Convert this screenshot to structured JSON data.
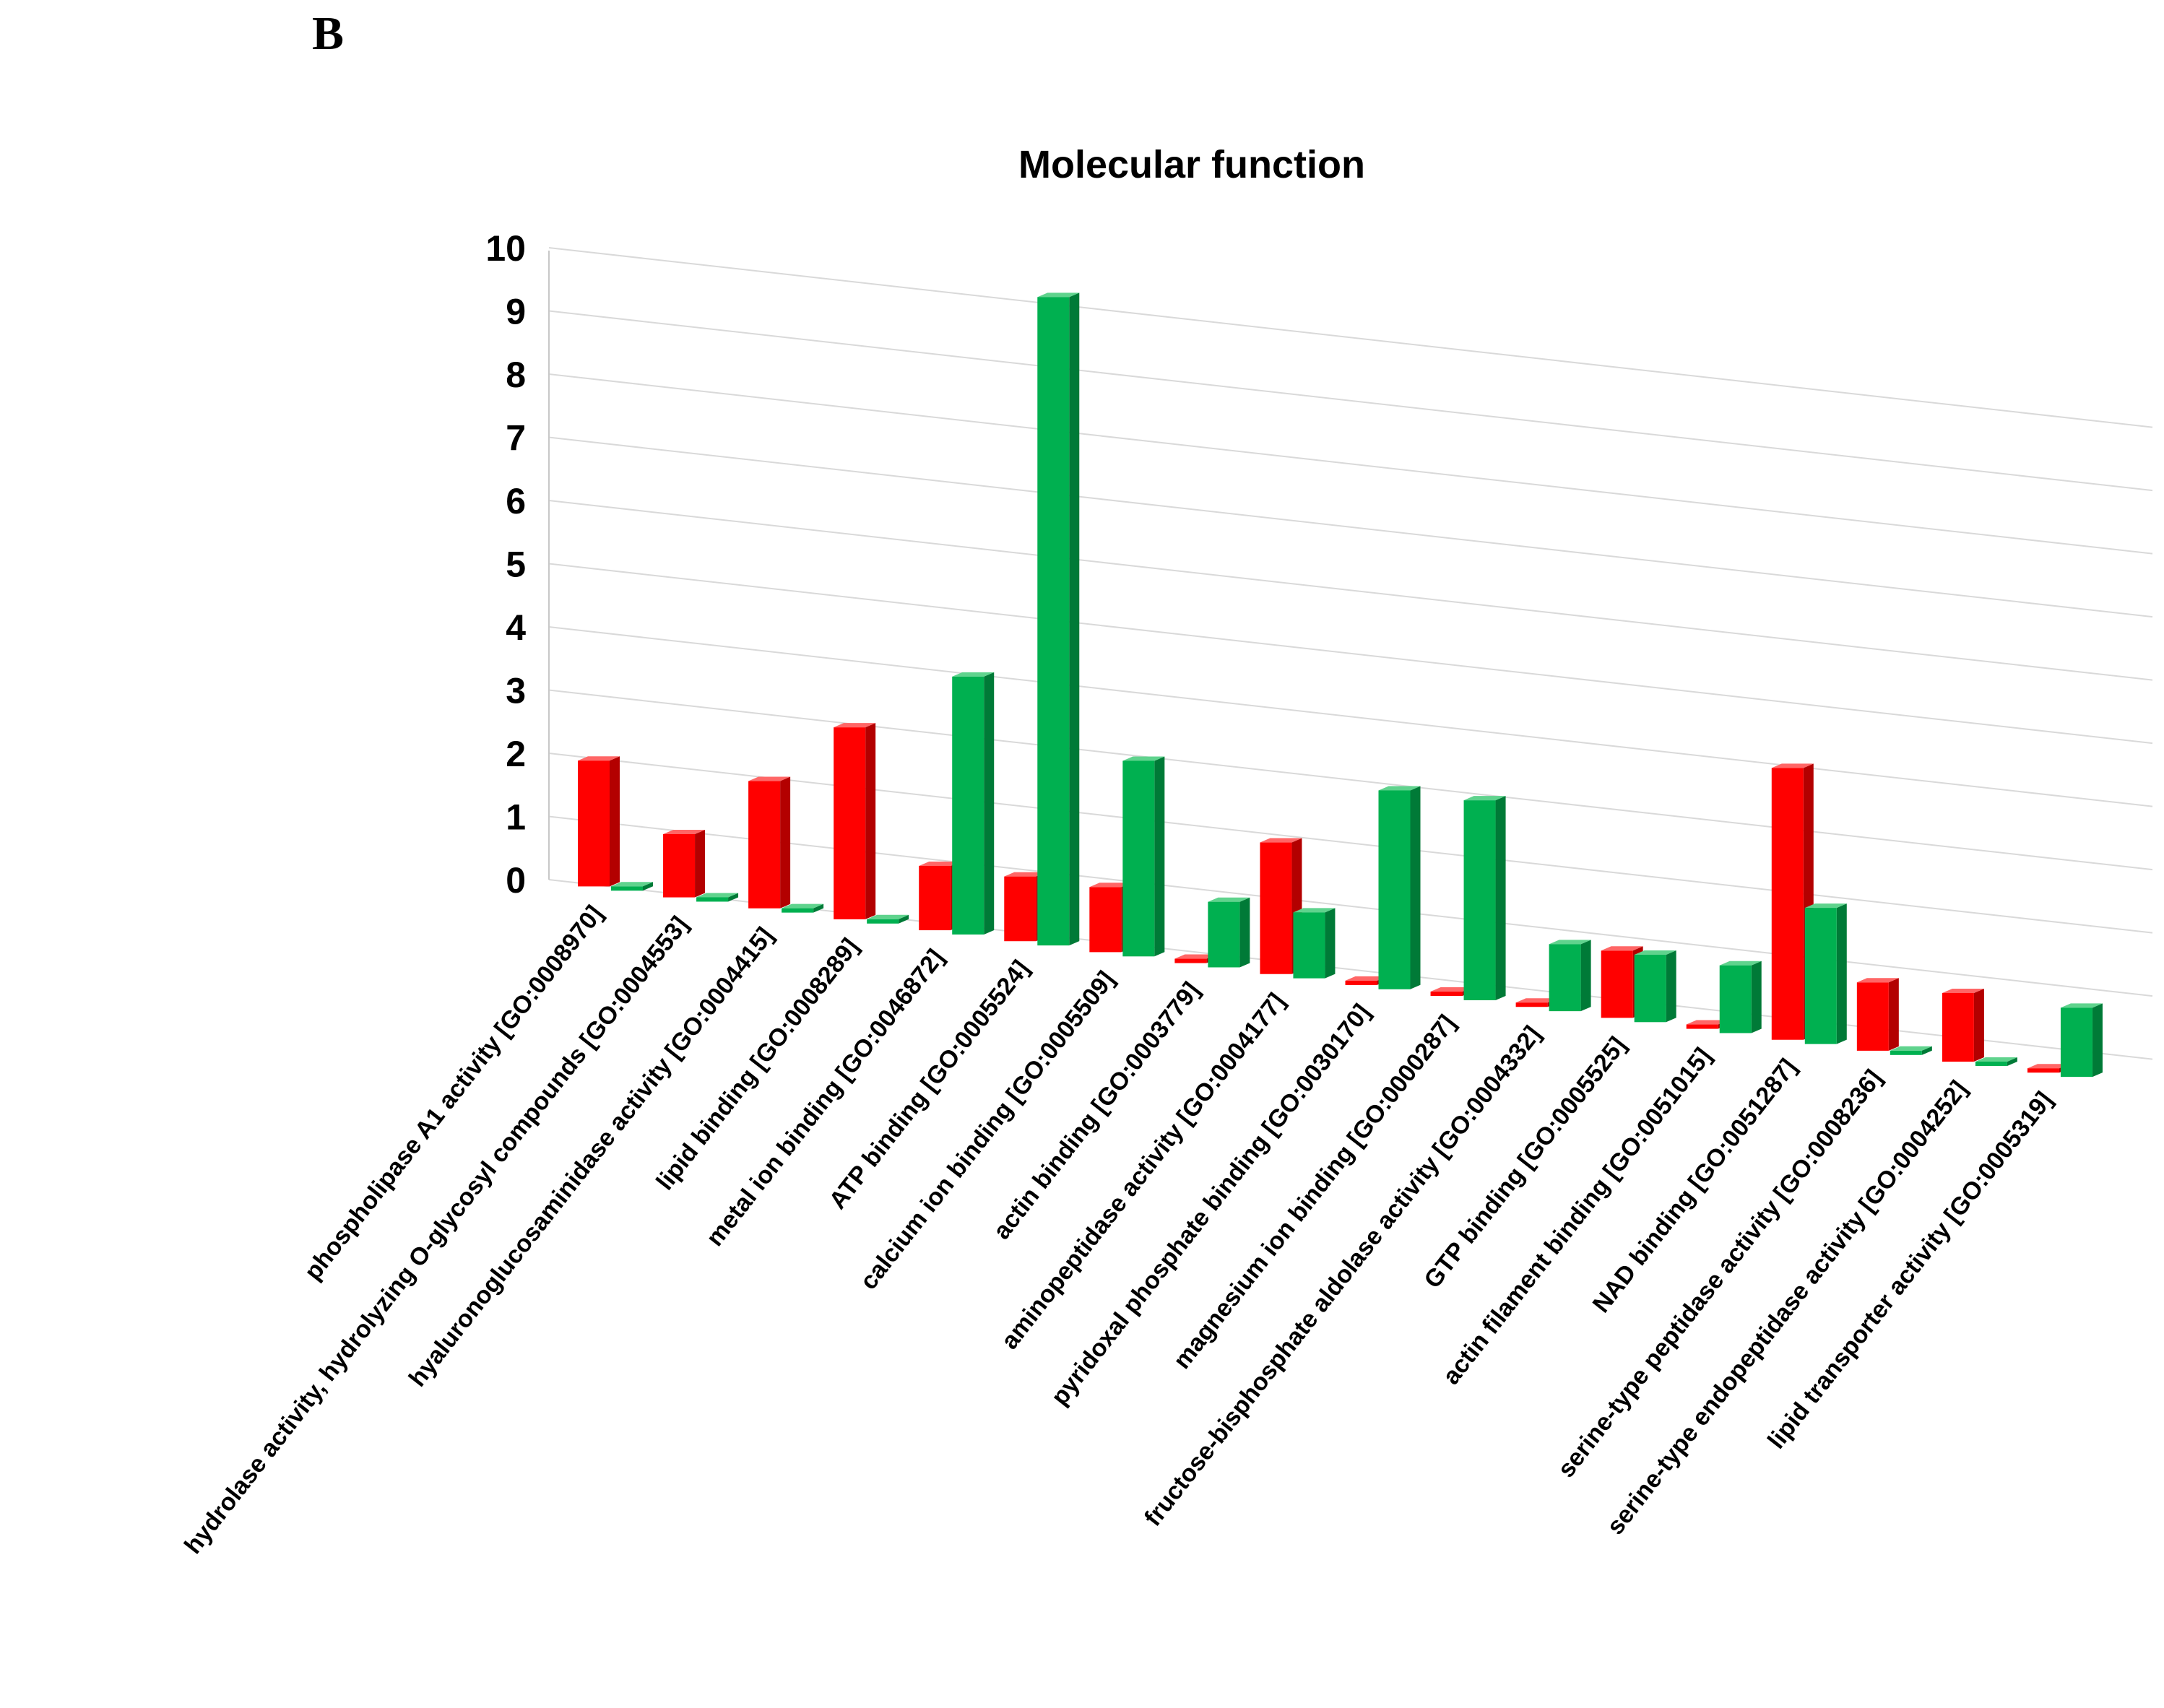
{
  "panel_label": "B",
  "colors": {
    "red_front": "#ff0000",
    "red_side": "#b30000",
    "red_top": "#ff6666",
    "green_front": "#00b050",
    "green_side": "#007a37",
    "green_top": "#5fd38d",
    "grid": "#d9d9d9"
  },
  "chart_data": {
    "type": "bar",
    "title": "Molecular function",
    "xlabel": "",
    "ylabel": "",
    "ylim": [
      0,
      10
    ],
    "yticks": [
      "0",
      "1",
      "2",
      "3",
      "4",
      "5",
      "6",
      "7",
      "8",
      "9",
      "10"
    ],
    "grid": true,
    "categories": [
      "phospholipase A1 activity [GO:0008970]",
      "hydrolase activity, hydrolyzing O-glycosyl compounds [GO:0004553]",
      "hyaluronoglucosaminidase activity [GO:0004415]",
      "lipid binding [GO:0008289]",
      "metal ion binding [GO:0046872]",
      "ATP binding [GO:0005524]",
      "calcium ion binding [GO:0005509]",
      "actin binding [GO:0003779]",
      "aminopeptidase activity [GO:0004177]",
      "pyridoxal phosphate binding [GO:0030170]",
      "magnesium ion binding [GO:0000287]",
      "fructose-bisphosphate aldolase activity [GO:0004332]",
      "GTP binding [GO:0005525]",
      "actin filament binding [GO:0051015]",
      "NAD binding [GO:0051287]",
      "serine-type peptidase activity [GO:0008236]",
      "serine-type endopeptidase activity [GO:0004252]",
      "lipid transporter activity [GO:0005319]"
    ],
    "series": [
      {
        "name": "red",
        "values": [
          2,
          1,
          2,
          3,
          1,
          1,
          1,
          0,
          2,
          0,
          0,
          0,
          1,
          0,
          4,
          1,
          1,
          0
        ]
      },
      {
        "name": "green",
        "values": [
          0,
          0,
          0,
          0,
          4,
          10,
          3,
          1,
          1,
          3,
          3,
          1,
          1,
          1,
          2,
          0,
          0,
          1
        ]
      }
    ]
  }
}
